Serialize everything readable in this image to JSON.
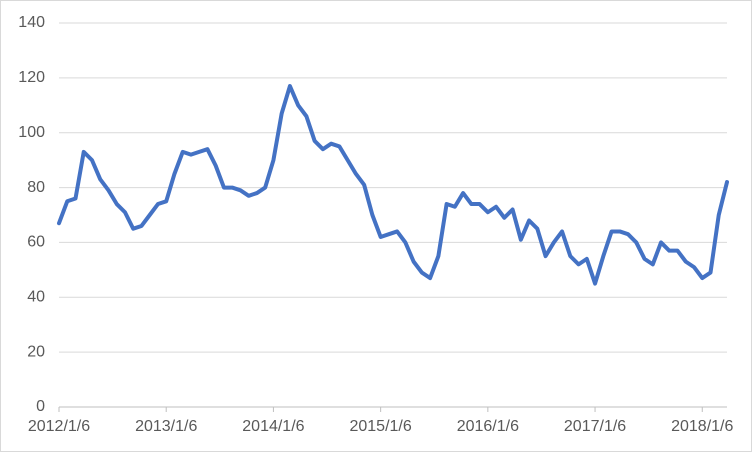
{
  "chart_data": {
    "type": "line",
    "categories": [
      "2012/1/6",
      null,
      null,
      null,
      null,
      null,
      null,
      null,
      null,
      null,
      null,
      null,
      null,
      "2013/1/6",
      null,
      null,
      null,
      null,
      null,
      null,
      null,
      null,
      null,
      null,
      null,
      null,
      "2014/1/6",
      null,
      null,
      null,
      null,
      null,
      null,
      null,
      null,
      null,
      null,
      null,
      null,
      "2015/1/6",
      null,
      null,
      null,
      null,
      null,
      null,
      null,
      null,
      null,
      null,
      null,
      null,
      "2016/1/6",
      null,
      null,
      null,
      null,
      null,
      null,
      null,
      null,
      null,
      null,
      null,
      null,
      "2017/1/6",
      null,
      null,
      null,
      null,
      null,
      null,
      null,
      null,
      null,
      null,
      null,
      null,
      "2018/1/6",
      null,
      null,
      null
    ],
    "values": [
      67,
      75,
      76,
      93,
      90,
      83,
      79,
      74,
      71,
      65,
      66,
      70,
      74,
      75,
      85,
      93,
      92,
      93,
      94,
      88,
      80,
      80,
      79,
      77,
      78,
      80,
      90,
      107,
      117,
      110,
      106,
      97,
      94,
      96,
      95,
      90,
      85,
      81,
      70,
      62,
      63,
      64,
      60,
      53,
      49,
      47,
      55,
      74,
      73,
      78,
      74,
      74,
      71,
      73,
      69,
      72,
      61,
      68,
      65,
      55,
      60,
      64,
      55,
      52,
      54,
      45,
      55,
      64,
      64,
      63,
      60,
      54,
      52,
      60,
      57,
      57,
      53,
      51,
      47,
      49,
      70,
      82
    ],
    "color": "#4472c4",
    "ylim": [
      0,
      140
    ],
    "yticks": [
      0,
      20,
      40,
      60,
      80,
      100,
      120,
      140
    ],
    "grid": true
  }
}
